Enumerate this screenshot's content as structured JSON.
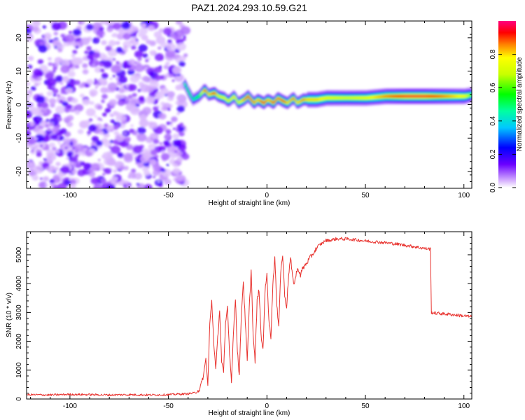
{
  "title": "PAZ1.2024.293.10.59.G21",
  "chart_data": [
    {
      "type": "heatmap",
      "xlabel": "Height of straight line (km)",
      "ylabel": "Frequency (Hz)",
      "xlim": [
        -122,
        104
      ],
      "ylim": [
        -25,
        25
      ],
      "xticks": [
        -100,
        -50,
        0,
        50,
        100
      ],
      "yticks": [
        -20,
        -10,
        0,
        10,
        20
      ],
      "colorbar": {
        "label": "Normalized spectral amplitude",
        "range": [
          0,
          1
        ],
        "ticks": [
          "0.0",
          "0.2",
          "0.4",
          "0.6",
          "0.8"
        ],
        "tick_values": [
          0,
          0.2,
          0.4,
          0.6,
          0.8
        ]
      },
      "noise_region_x": [
        -122,
        -41
      ],
      "ridge": {
        "x": [
          -42,
          -40,
          -38,
          -35,
          -32,
          -30,
          -27,
          -25,
          -22,
          -20,
          -17,
          -15,
          -12,
          -10,
          -7,
          -5,
          -2,
          0,
          3,
          5,
          8,
          10,
          13,
          15,
          18,
          20,
          25,
          30,
          40,
          50,
          60,
          70,
          80,
          90,
          100,
          104
        ],
        "freq_hz": [
          6,
          3.5,
          1.5,
          2.5,
          4.5,
          3,
          3.5,
          2.5,
          2,
          1,
          2.5,
          0.5,
          1.5,
          2.5,
          0.5,
          1.5,
          0.5,
          1.5,
          0.5,
          2,
          1,
          0.5,
          2,
          0.5,
          1.5,
          1.5,
          1.5,
          2,
          2,
          2,
          2.5,
          2.5,
          2.5,
          2.5,
          2.5,
          3
        ],
        "amplitude": [
          0.5,
          0.55,
          0.45,
          0.55,
          0.9,
          0.8,
          0.9,
          0.7,
          0.75,
          0.7,
          0.8,
          0.7,
          0.85,
          0.9,
          0.85,
          0.8,
          0.95,
          0.8,
          0.9,
          0.85,
          0.9,
          0.8,
          0.85,
          0.8,
          0.85,
          0.8,
          0.8,
          0.75,
          0.7,
          0.75,
          0.85,
          0.95,
          0.95,
          0.85,
          0.75,
          0.55
        ]
      }
    },
    {
      "type": "line",
      "xlabel": "Height of straight line (km)",
      "ylabel": "SNR (10 * v/v)",
      "xlim": [
        -122,
        104
      ],
      "ylim": [
        0,
        5800
      ],
      "xticks": [
        -100,
        -50,
        0,
        50,
        100
      ],
      "yticks": [
        0,
        1000,
        2000,
        3000,
        4000,
        5000
      ],
      "color": "#e8322e",
      "series": [
        {
          "x": [
            -122,
            -110,
            -100,
            -90,
            -80,
            -70,
            -60,
            -50,
            -45,
            -40,
            -36,
            -34,
            -33,
            -32,
            -31,
            -30,
            -29,
            -28,
            -27,
            -26,
            -25,
            -24,
            -23,
            -22,
            -21,
            -20,
            -19,
            -18,
            -17,
            -16,
            -15,
            -14,
            -13,
            -12,
            -11,
            -10,
            -9,
            -8,
            -7,
            -6,
            -5,
            -4,
            -3,
            -2,
            -1,
            0,
            1,
            2,
            3,
            4,
            5,
            6,
            7,
            8,
            9,
            10,
            11,
            12,
            13,
            14,
            15,
            16,
            17,
            18,
            19,
            20,
            22,
            24,
            26,
            28,
            30,
            32,
            35,
            40,
            45,
            50,
            55,
            60,
            65,
            70,
            75,
            80,
            83,
            83.5,
            85,
            90,
            95,
            100,
            104
          ],
          "y": [
            150,
            140,
            160,
            150,
            140,
            150,
            140,
            150,
            170,
            180,
            220,
            350,
            600,
            900,
            1400,
            450,
            2600,
            3400,
            2000,
            1000,
            2100,
            3100,
            1300,
            900,
            2600,
            3200,
            1600,
            650,
            2300,
            3500,
            1700,
            800,
            2900,
            4100,
            2700,
            1300,
            3100,
            4500,
            2200,
            1300,
            3400,
            3800,
            2200,
            1700,
            3700,
            4300,
            2800,
            2100,
            4000,
            4900,
            3200,
            2600,
            4400,
            5000,
            3600,
            3200,
            4300,
            4900,
            4200,
            4000,
            4400,
            4500,
            4300,
            4500,
            4600,
            4700,
            4900,
            5100,
            5300,
            5400,
            5500,
            5500,
            5550,
            5550,
            5520,
            5480,
            5450,
            5420,
            5380,
            5330,
            5280,
            5220,
            5200,
            3000,
            2980,
            2950,
            2920,
            2880,
            2850
          ]
        }
      ]
    }
  ]
}
